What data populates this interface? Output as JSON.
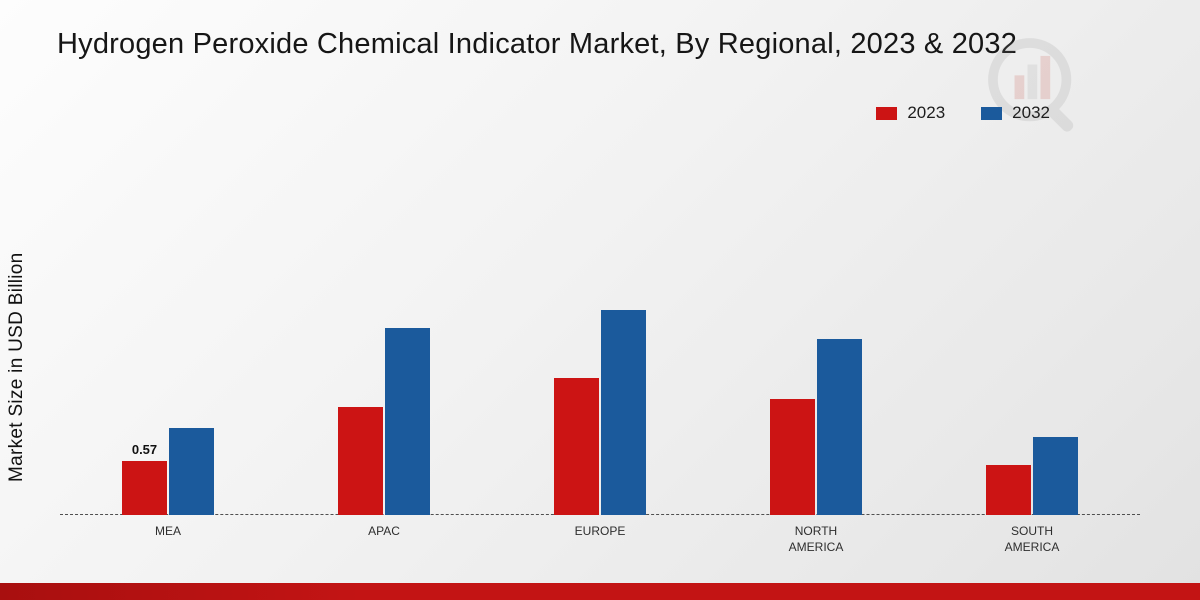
{
  "title": "Hydrogen Peroxide Chemical Indicator Market, By Regional, 2023 & 2032",
  "colors": {
    "series_2023": "#cc1414",
    "series_2032": "#1b5a9c",
    "footer": "#c31414",
    "baseline": "#4f4f4f",
    "background": "#ececec"
  },
  "chart_data": {
    "type": "bar",
    "title": "Hydrogen Peroxide Chemical Indicator Market, By Regional, 2023 & 2032",
    "xlabel": "",
    "ylabel": "Market Size in USD Billion",
    "categories": [
      "MEA",
      "APAC",
      "EUROPE",
      "NORTH AMERICA",
      "SOUTH AMERICA"
    ],
    "series": [
      {
        "name": "2023",
        "color": "#cc1414",
        "values": [
          0.57,
          1.13,
          1.43,
          1.22,
          0.52
        ]
      },
      {
        "name": "2032",
        "color": "#1b5a9c",
        "values": [
          0.91,
          1.96,
          2.15,
          1.84,
          0.82
        ]
      }
    ],
    "ylim": [
      0,
      3.3
    ],
    "grid": false,
    "legend_position": "top-right",
    "annotations": [
      {
        "series": "2023",
        "category": "MEA",
        "text": "0.57"
      }
    ]
  }
}
